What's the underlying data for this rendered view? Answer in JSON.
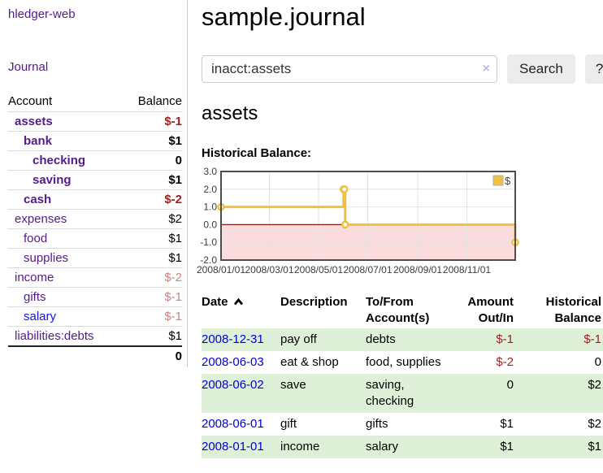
{
  "app": {
    "title": "hledger-web",
    "nav_journal": "Journal"
  },
  "sidebar": {
    "headers": {
      "account": "Account",
      "balance": "Balance"
    },
    "accounts": [
      {
        "name": "assets",
        "balance": "$-1",
        "level": 1,
        "bold": true,
        "neg": "strong"
      },
      {
        "name": "bank",
        "balance": "$1",
        "level": 2,
        "bold": true,
        "neg": "none"
      },
      {
        "name": "checking",
        "balance": "0",
        "level": 3,
        "bold": true,
        "neg": "none"
      },
      {
        "name": "saving",
        "balance": "$1",
        "level": 3,
        "bold": true,
        "neg": "none"
      },
      {
        "name": "cash",
        "balance": "$-2",
        "level": 2,
        "bold": true,
        "neg": "strong"
      },
      {
        "name": "expenses",
        "balance": "$2",
        "level": 1,
        "bold": false,
        "neg": "none"
      },
      {
        "name": "food",
        "balance": "$1",
        "level": 2,
        "bold": false,
        "neg": "none"
      },
      {
        "name": "supplies",
        "balance": "$1",
        "level": 2,
        "bold": false,
        "neg": "none"
      },
      {
        "name": "income",
        "balance": "$-2",
        "level": 1,
        "bold": false,
        "neg": "soft"
      },
      {
        "name": "gifts",
        "balance": "$-1",
        "level": 2,
        "bold": false,
        "neg": "soft"
      },
      {
        "name": "salary",
        "balance": "$-1",
        "level": 2,
        "bold": false,
        "neg": "soft",
        "blue": true
      },
      {
        "name": "liabilities:debts",
        "balance": "$1",
        "level": 1,
        "bold": false,
        "neg": "none"
      }
    ],
    "total": "0"
  },
  "header": {
    "title": "sample.journal"
  },
  "search": {
    "value": "inacct:assets",
    "clear_icon": "×",
    "button_label": "Search",
    "help_label": "?"
  },
  "account_page": {
    "title": "assets",
    "chart_label": "Historical Balance:"
  },
  "chart_data": {
    "type": "line",
    "step": true,
    "title": "Historical Balance:",
    "series": [
      {
        "name": "$",
        "color": "#edc240",
        "points": [
          [
            "2008-01-01",
            1
          ],
          [
            "2008-06-01",
            2
          ],
          [
            "2008-06-02",
            2
          ],
          [
            "2008-06-03",
            0
          ],
          [
            "2008-12-31",
            -1
          ]
        ]
      }
    ],
    "xlim": [
      "2008-01-01",
      "2008-12-31"
    ],
    "ylim": [
      -2,
      3
    ],
    "y_ticks": [
      "3.0",
      "2.0",
      "1.0",
      "0.0",
      "-1.0",
      "-2.0"
    ],
    "x_ticks": [
      "2008/01/01",
      "2008/03/01",
      "2008/05/01",
      "2008/07/01",
      "2008/09/01",
      "2008/11/01"
    ],
    "legend": {
      "label": "$",
      "position": "top-right"
    },
    "grid": true,
    "colors": {
      "border": "#4d4d4d",
      "gridline": "#e2e2e2",
      "tick_text": "#3c3c3c",
      "negative_region": "#fbdcdc",
      "zero_line": "#8b1a1a",
      "marker_fill": "#ffffff",
      "legend_box_border": "#b0b0b0"
    }
  },
  "register": {
    "headers": {
      "date": "Date",
      "description": "Description",
      "accounts_l1": "To/From",
      "accounts_l2": "Account(s)",
      "amount_l1": "Amount",
      "amount_l2": "Out/In",
      "balance_l1": "Historical",
      "balance_l2": "Balance"
    },
    "rows": [
      {
        "date": "2008-12-31",
        "description": "pay off",
        "accounts": "debts",
        "amount": "$-1",
        "balance": "$-1"
      },
      {
        "date": "2008-06-03",
        "description": "eat & shop",
        "accounts": "food, supplies",
        "amount": "$-2",
        "balance": "0"
      },
      {
        "date": "2008-06-02",
        "description": "save",
        "accounts": "saving, checking",
        "amount": "0",
        "balance": "$2"
      },
      {
        "date": "2008-06-01",
        "description": "gift",
        "accounts": "gifts",
        "amount": "$1",
        "balance": "$2"
      },
      {
        "date": "2008-01-01",
        "description": "income",
        "accounts": "salary",
        "amount": "$1",
        "balance": "$1"
      }
    ]
  }
}
